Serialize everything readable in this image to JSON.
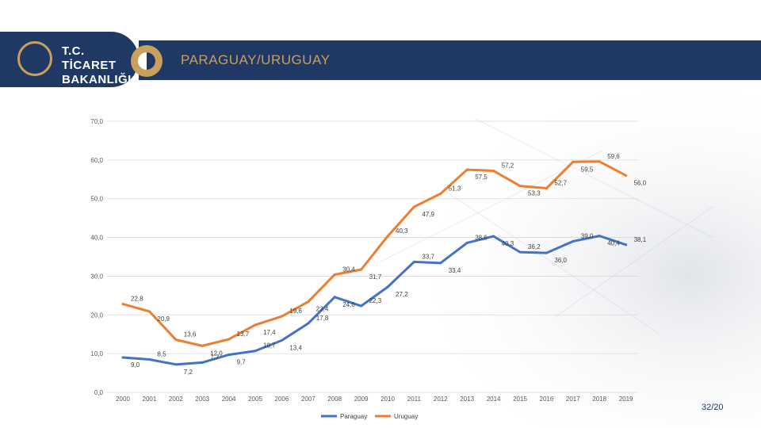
{
  "header": {
    "logo_line1": "T.C. TİCARET",
    "logo_line2": "BAKANLIĞI",
    "title": "PARAGUAY/URUGUAY"
  },
  "page_number": "32/20",
  "colors": {
    "brand": "#1f3864",
    "accent": "#c9a15a",
    "paraguay": "#4472c4",
    "uruguay": "#ed7d31"
  },
  "chart_data": {
    "type": "line",
    "title": "",
    "xlabel": "",
    "ylabel": "",
    "ylim": [
      0,
      70
    ],
    "yticks": [
      "0,0",
      "10,0",
      "20,0",
      "30,0",
      "40,0",
      "50,0",
      "60,0",
      "70,0"
    ],
    "categories": [
      "2000",
      "2001",
      "2002",
      "2003",
      "2004",
      "2005",
      "2006",
      "2007",
      "2008",
      "2009",
      "2010",
      "2011",
      "2012",
      "2013",
      "2014",
      "2015",
      "2016",
      "2017",
      "2018",
      "2019"
    ],
    "grid": true,
    "legend_position": "bottom",
    "series": [
      {
        "name": "Paraguay",
        "values": [
          9.0,
          8.5,
          7.2,
          7.7,
          9.7,
          10.7,
          13.4,
          17.8,
          24.6,
          22.3,
          27.2,
          33.7,
          33.4,
          38.6,
          40.3,
          36.2,
          36.0,
          39.0,
          40.4,
          38.1
        ],
        "labels": [
          "9,0",
          "8,5",
          "7,2",
          "7,7",
          "9,7",
          "10,7",
          "13,4",
          "17,8",
          "24,6",
          "22,3",
          "27,2",
          "33,7",
          "33,4",
          "38,6",
          "40,3",
          "36,2",
          "36,0",
          "39,0",
          "40,4",
          "38,1"
        ]
      },
      {
        "name": "Uruguay",
        "values": [
          22.8,
          20.9,
          13.6,
          12.0,
          13.7,
          17.4,
          19.6,
          23.4,
          30.4,
          31.7,
          40.3,
          47.9,
          51.3,
          57.5,
          57.2,
          53.3,
          52.7,
          59.5,
          59.6,
          56.0
        ],
        "labels": [
          "22,8",
          "20,9",
          "13,6",
          "12,0",
          "13,7",
          "17,4",
          "19,6",
          "23,4",
          "30,4",
          "31,7",
          "40,3",
          "47,9",
          "51,3",
          "57,5",
          "57,2",
          "53,3",
          "52,7",
          "59,5",
          "59,6",
          "56,0"
        ]
      }
    ]
  }
}
